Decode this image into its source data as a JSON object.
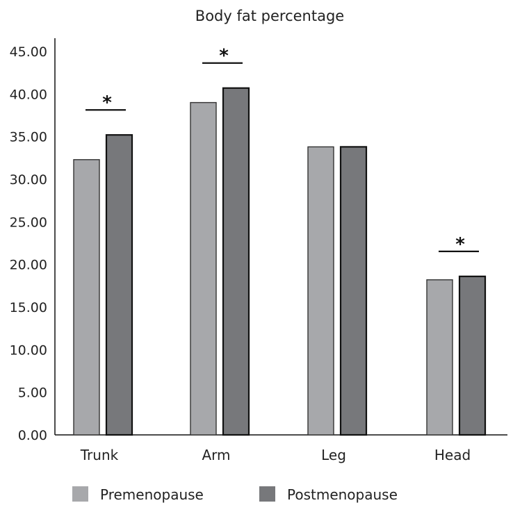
{
  "chart_data": {
    "type": "bar",
    "title": "Body fat percentage",
    "xlabel": "",
    "ylabel": "",
    "ylim": [
      0,
      45
    ],
    "yticks": [
      "0.00",
      "5.00",
      "10.00",
      "15.00",
      "20.00",
      "25.00",
      "30.00",
      "35.00",
      "40.00",
      "45.00"
    ],
    "categories": [
      "Trunk",
      "Arm",
      "Leg",
      "Head"
    ],
    "series": [
      {
        "name": "Premenopause",
        "values": [
          32.3,
          39.0,
          33.8,
          18.2
        ],
        "color": "#a7a8ab"
      },
      {
        "name": "Postmenopause",
        "values": [
          35.2,
          40.7,
          33.8,
          18.6
        ],
        "color": "#77787b"
      }
    ],
    "significance": [
      {
        "category": "Trunk",
        "label": "*"
      },
      {
        "category": "Arm",
        "label": "*"
      },
      {
        "category": "Head",
        "label": "*"
      }
    ],
    "legend_position": "bottom",
    "grid": false
  }
}
